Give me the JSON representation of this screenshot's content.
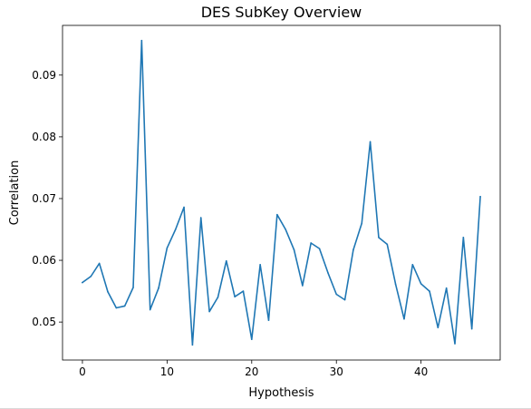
{
  "chart_data": {
    "type": "line",
    "title": "DES SubKey Overview",
    "xlabel": "Hypothesis",
    "ylabel": "Correlation",
    "x": [
      0,
      1,
      2,
      3,
      4,
      5,
      6,
      7,
      8,
      9,
      10,
      11,
      12,
      13,
      14,
      15,
      16,
      17,
      18,
      19,
      20,
      21,
      22,
      23,
      24,
      25,
      26,
      27,
      28,
      29,
      30,
      31,
      32,
      33,
      34,
      35,
      36,
      37,
      38,
      39,
      40,
      41,
      42,
      43,
      44,
      45,
      46,
      47
    ],
    "series": [
      {
        "values": [
          0.0564,
          0.0574,
          0.0595,
          0.0549,
          0.0523,
          0.0526,
          0.0556,
          0.0956,
          0.052,
          0.0555,
          0.062,
          0.065,
          0.0686,
          0.0463,
          0.0669,
          0.0517,
          0.054,
          0.0599,
          0.0541,
          0.055,
          0.0472,
          0.0593,
          0.0503,
          0.0674,
          0.065,
          0.0617,
          0.0559,
          0.0628,
          0.0619,
          0.058,
          0.0545,
          0.0536,
          0.0617,
          0.066,
          0.0792,
          0.0637,
          0.0626,
          0.0561,
          0.0505,
          0.0593,
          0.0562,
          0.055,
          0.0491,
          0.0555,
          0.0465,
          0.0637,
          0.0489,
          0.0703
        ],
        "color": "#1f77b4"
      }
    ],
    "xlim": [
      -2.35,
      49.35
    ],
    "ylim": [
      0.04385,
      0.09805
    ],
    "xticks": [
      0,
      10,
      20,
      30,
      40
    ],
    "xtick_labels": [
      "0",
      "10",
      "20",
      "30",
      "40"
    ],
    "yticks": [
      0.05,
      0.06,
      0.07,
      0.08,
      0.09
    ],
    "ytick_labels": [
      "0.05",
      "0.06",
      "0.07",
      "0.08",
      "0.09"
    ],
    "grid": false,
    "legend": false
  }
}
